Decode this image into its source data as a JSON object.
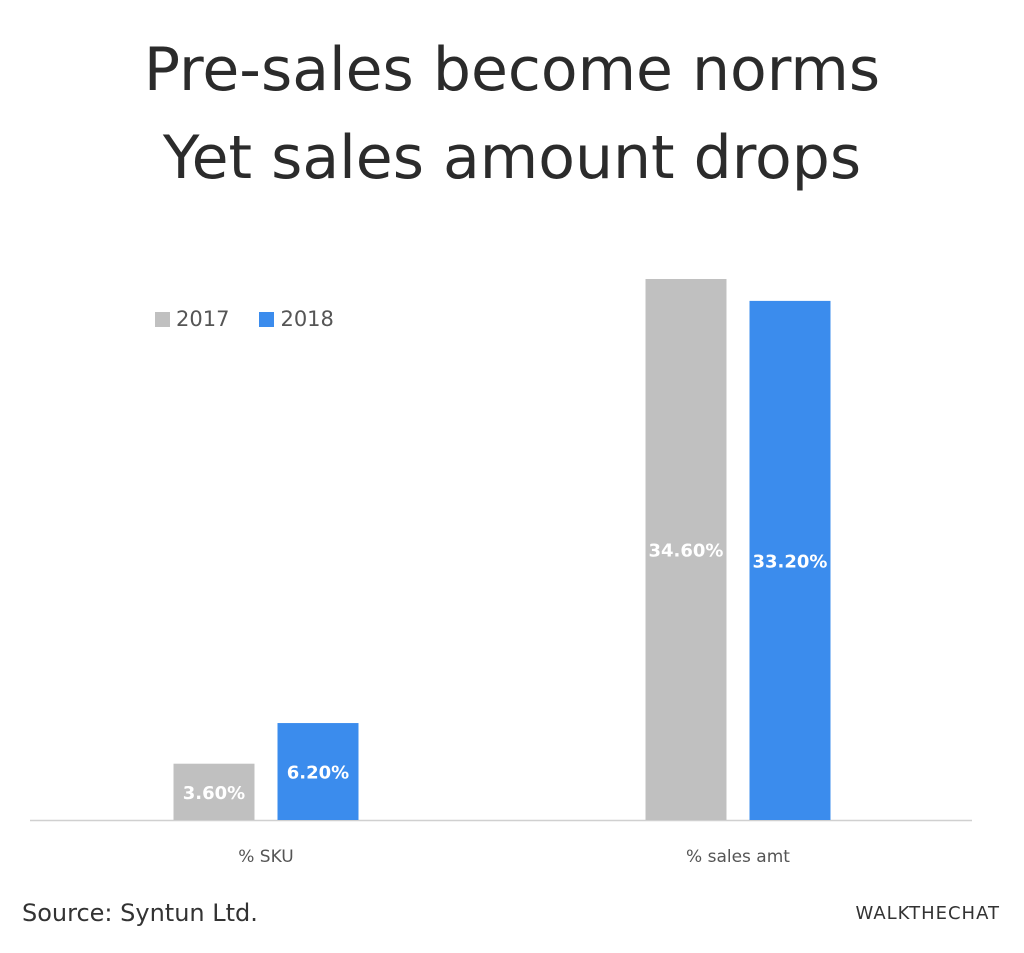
{
  "title": {
    "line1": "Pre-sales become norms",
    "line2": "Yet sales amount drops"
  },
  "chart_data": {
    "type": "bar",
    "categories": [
      "% SKU",
      "% sales amt"
    ],
    "series": [
      {
        "name": "2017",
        "values": [
          3.6,
          34.6
        ],
        "labels": [
          "3.60%",
          "34.60%"
        ],
        "color": "#c0c0c0"
      },
      {
        "name": "2018",
        "values": [
          6.2,
          33.2
        ],
        "labels": [
          "6.20%",
          "33.20%"
        ],
        "color": "#3b8ced"
      }
    ],
    "ylim": [
      0,
      34.6
    ],
    "legend_position": "top-left",
    "grid": false,
    "axis_color": "#d0d0d0"
  },
  "footer": {
    "source": "Source: Syntun Ltd.",
    "brand": "WALKTHECHAT"
  }
}
